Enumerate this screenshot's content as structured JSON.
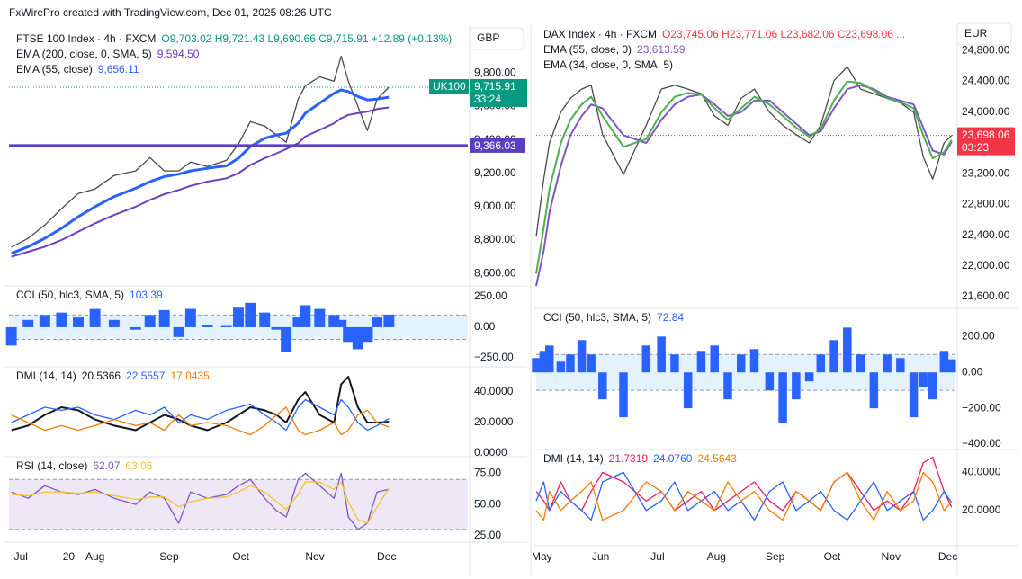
{
  "header": "FxWirePro created with TradingView.com, Dec 01, 2025 08:26 UTC",
  "chart_data": [
    {
      "type": "line",
      "title": "FTSE 100 Index · 4h · FXCM",
      "ohlc": "O9,703.02 H9,721.43 L9,690.66 C9,715.91 +12.89 (+0.13%)",
      "ohlc_color": "#089981",
      "currency": "GBP",
      "x": [
        -4,
        3,
        10,
        17,
        24,
        31,
        39,
        48,
        54,
        60,
        66,
        71,
        78,
        86,
        91,
        96,
        102,
        107,
        111,
        116,
        119,
        125,
        131,
        134,
        137,
        141,
        145,
        149,
        154
      ],
      "xlim": [
        -5,
        187
      ],
      "ylim": [
        8525,
        10050
      ],
      "yticks": [
        {
          "value": 8600,
          "label": "8,600.00"
        },
        {
          "value": 8800,
          "label": "8,800.00"
        },
        {
          "value": 9000,
          "label": "9,000.00"
        },
        {
          "value": 9200,
          "label": "9,200.00"
        },
        {
          "value": 9400,
          "label": "9,400.00"
        },
        {
          "value": 9600,
          "label": "9,600.00"
        },
        {
          "value": 9800,
          "label": "9,800.00"
        }
      ],
      "series": [
        {
          "color": "#4a4a4a",
          "values": [
            8757,
            8810,
            8890,
            8988,
            9079,
            9106,
            9187,
            9214,
            9294,
            9214,
            9214,
            9267,
            9240,
            9278,
            9375,
            9510,
            9483,
            9429,
            9386,
            9644,
            9725,
            9778,
            9752,
            9902,
            9752,
            9601,
            9456,
            9644,
            9715.91
          ]
        },
        {
          "name": "EMA (200, close, 0, SMA, 5)",
          "last_label": "9,594.50",
          "color": "#6a3fc0",
          "line_width": 2,
          "values": [
            8700,
            8730,
            8760,
            8800,
            8850,
            8900,
            8950,
            9000,
            9040,
            9075,
            9100,
            9125,
            9150,
            9170,
            9200,
            9250,
            9290,
            9320,
            9345,
            9380,
            9420,
            9460,
            9500,
            9530,
            9550,
            9560,
            9570,
            9585,
            9594.5
          ]
        },
        {
          "name": "EMA (55, close)",
          "last_label": "9,656.11",
          "color": "#2962ff",
          "line_width": 3,
          "values": [
            8720,
            8760,
            8810,
            8870,
            8940,
            9000,
            9060,
            9110,
            9150,
            9180,
            9195,
            9215,
            9230,
            9245,
            9290,
            9360,
            9410,
            9430,
            9440,
            9500,
            9560,
            9620,
            9680,
            9700,
            9690,
            9660,
            9640,
            9645,
            9656.11
          ]
        }
      ],
      "hline": {
        "value": 9366.03,
        "label": "9,366.03",
        "color": "#5b3fbf"
      },
      "price_label": {
        "name": "UK100",
        "value": 9715.91,
        "label": "9,715.91",
        "timer": "33:24",
        "color": "#089981"
      }
    },
    {
      "type": "bar",
      "title": "CCI (50, hlc3, SMA, 5)",
      "x": [
        -4,
        3,
        10,
        17,
        24,
        31,
        39,
        48,
        54,
        60,
        66,
        71,
        78,
        86,
        91,
        96,
        102,
        107,
        111,
        116,
        119,
        125,
        131,
        134,
        137,
        141,
        145,
        149,
        154
      ],
      "xlim": [
        -5,
        187
      ],
      "ylim": [
        -324,
        338
      ],
      "yticks": [
        {
          "value": 250,
          "label": "250.00"
        },
        {
          "value": 0,
          "label": "0.00"
        },
        {
          "value": -250,
          "label": "−250.00"
        }
      ],
      "bands": [
        100,
        -100
      ],
      "band_color": "#e3f2fd",
      "series": [
        {
          "last_label": "103.39",
          "color": "#2962ff",
          "values": [
            -150,
            60,
            100,
            120,
            80,
            150,
            60,
            -20,
            100,
            140,
            -80,
            150,
            20,
            10,
            160,
            200,
            120,
            -20,
            -200,
            80,
            180,
            150,
            100,
            60,
            -120,
            -180,
            -120,
            80,
            103.39
          ]
        }
      ]
    },
    {
      "type": "line",
      "title": "DMI (14, 14)",
      "x": [
        -4,
        3,
        10,
        17,
        24,
        31,
        39,
        48,
        54,
        60,
        66,
        71,
        78,
        86,
        91,
        96,
        102,
        107,
        111,
        116,
        119,
        125,
        131,
        134,
        137,
        141,
        145,
        149,
        154
      ],
      "xlim": [
        -5,
        187
      ],
      "ylim": [
        -2.4,
        56.5
      ],
      "yticks": [
        {
          "value": 40,
          "label": "40.0000"
        },
        {
          "value": 20,
          "label": "20.0000"
        },
        {
          "value": 0,
          "label": "0.0000"
        }
      ],
      "series": [
        {
          "last_label": "20.5366",
          "color": "#131722",
          "line_width": 2,
          "values": [
            15,
            18,
            25,
            30,
            28,
            22,
            18,
            15,
            20,
            25,
            22,
            18,
            15,
            20,
            25,
            30,
            28,
            25,
            20,
            35,
            40,
            25,
            20,
            45,
            50,
            30,
            20,
            20,
            20.5366
          ]
        },
        {
          "last_label": "22.5557",
          "color": "#2962ff",
          "values": [
            20,
            25,
            30,
            28,
            30,
            25,
            22,
            28,
            25,
            30,
            20,
            25,
            22,
            28,
            30,
            32,
            25,
            20,
            15,
            30,
            35,
            30,
            25,
            35,
            30,
            20,
            15,
            18,
            22.5557
          ]
        },
        {
          "last_label": "17.0435",
          "color": "#f57c00",
          "values": [
            25,
            20,
            15,
            18,
            15,
            18,
            22,
            18,
            20,
            15,
            25,
            18,
            20,
            18,
            15,
            12,
            18,
            25,
            30,
            15,
            12,
            15,
            20,
            12,
            15,
            25,
            28,
            20,
            17.0435
          ]
        }
      ]
    },
    {
      "type": "line",
      "title": "RSI (14, close)",
      "x": [
        -4,
        3,
        10,
        17,
        24,
        31,
        39,
        48,
        54,
        60,
        66,
        71,
        78,
        86,
        91,
        96,
        102,
        107,
        111,
        116,
        119,
        125,
        131,
        134,
        137,
        141,
        145,
        149,
        154
      ],
      "xlim": [
        -5,
        187
      ],
      "ylim": [
        20.6,
        88.2
      ],
      "yticks": [
        {
          "value": 75,
          "label": "75.00"
        },
        {
          "value": 50,
          "label": "50.00"
        },
        {
          "value": 25,
          "label": "25.00"
        }
      ],
      "bands": [
        70,
        30
      ],
      "band_color": "#ede7f6",
      "xticks": [
        {
          "value": 0,
          "label": "Jul"
        },
        {
          "value": 31,
          "label": "Aug"
        },
        {
          "value": 62,
          "label": "Sep"
        },
        {
          "value": 92,
          "label": "Oct"
        },
        {
          "value": 123,
          "label": "Nov"
        },
        {
          "value": 153,
          "label": "Dec"
        },
        20
      ],
      "series": [
        {
          "last_label": "62.07",
          "color": "#7e57c2",
          "values": [
            60,
            55,
            65,
            60,
            58,
            62,
            55,
            50,
            60,
            55,
            35,
            60,
            55,
            58,
            65,
            70,
            55,
            45,
            40,
            70,
            75,
            65,
            55,
            75,
            40,
            30,
            35,
            60,
            62.07
          ]
        },
        {
          "last_label": "63.06",
          "color": "#f9c22e",
          "values": [
            58,
            57,
            60,
            60,
            59,
            60,
            57,
            54,
            56,
            56,
            48,
            52,
            55,
            56,
            60,
            65,
            60,
            52,
            46,
            58,
            68,
            68,
            62,
            68,
            52,
            38,
            35,
            48,
            63.06
          ]
        }
      ]
    },
    {
      "type": "line",
      "title": "DAX Index · 4h · FXCM",
      "ohlc": "O23,745.06 H23,771.06 L23,682.06 C23,698.06 ...",
      "ohlc_color": "#f23645",
      "currency": "EUR",
      "x": [
        -3,
        1,
        4,
        10,
        15,
        21,
        26,
        32,
        43,
        55,
        63,
        70,
        77,
        84,
        91,
        98,
        105,
        112,
        120,
        127,
        134,
        141,
        147,
        154,
        161,
        168,
        175,
        182,
        189,
        196,
        201,
        206,
        212,
        216
      ],
      "xlim": [
        -3,
        218
      ],
      "ylim": [
        21460,
        25108
      ],
      "yticks": [
        {
          "value": 21600,
          "label": "21,600.00"
        },
        {
          "value": 22000,
          "label": "22,000.00"
        },
        {
          "value": 22400,
          "label": "22,400.00"
        },
        {
          "value": 22800,
          "label": "22,800.00"
        },
        {
          "value": 23200,
          "label": "23,200.00"
        },
        {
          "value": 24000,
          "label": "24,000.00"
        },
        {
          "value": 24400,
          "label": "24,400.00"
        },
        {
          "value": 24800,
          "label": "24,800.00"
        }
      ],
      "series": [
        {
          "color": "#4a4a4a",
          "values": [
            22380,
            23130,
            23600,
            24000,
            24180,
            24300,
            24350,
            23710,
            23190,
            23830,
            24300,
            24350,
            24300,
            24240,
            23950,
            23830,
            24180,
            24300,
            24000,
            23830,
            23710,
            23600,
            23830,
            24410,
            24590,
            24300,
            24240,
            24180,
            24120,
            24000,
            23420,
            23130,
            23600,
            23698.06
          ]
        },
        {
          "name": "EMA (55, close, 0)",
          "last_label": "23,613.59",
          "color": "#7e57c2",
          "line_width": 2,
          "values": [
            21740,
            22200,
            22700,
            23300,
            23700,
            23950,
            24100,
            24050,
            23700,
            23600,
            23900,
            24100,
            24200,
            24230,
            24100,
            23950,
            24000,
            24150,
            24150,
            24000,
            23850,
            23700,
            23750,
            24050,
            24300,
            24350,
            24300,
            24200,
            24150,
            24100,
            23800,
            23500,
            23450,
            23613.59
          ]
        },
        {
          "name": "EMA (34, close, 0, SMA, 5)",
          "color": "#4caf50",
          "line_width": 2,
          "values": [
            21900,
            22500,
            23000,
            23600,
            23900,
            24100,
            24200,
            23950,
            23550,
            23650,
            24000,
            24200,
            24250,
            24230,
            24050,
            23900,
            24050,
            24200,
            24100,
            23950,
            23800,
            23680,
            23780,
            24150,
            24400,
            24380,
            24280,
            24180,
            24130,
            24050,
            23700,
            23400,
            23480,
            23640
          ]
        }
      ],
      "price_label": {
        "value": 23698.06,
        "label": "23,698.06",
        "timer": "03:23",
        "color": "#f23645"
      }
    },
    {
      "type": "bar",
      "title": "CCI (50, hlc3, SMA, 5)",
      "x": [
        -3,
        1,
        4,
        10,
        15,
        21,
        26,
        32,
        43,
        55,
        63,
        70,
        77,
        84,
        91,
        98,
        105,
        112,
        120,
        127,
        134,
        141,
        147,
        154,
        161,
        168,
        175,
        182,
        189,
        196,
        201,
        206,
        212,
        216
      ],
      "xlim": [
        -3,
        218
      ],
      "ylim": [
        -430,
        357
      ],
      "yticks": [
        {
          "value": 200,
          "label": "200.00"
        },
        {
          "value": 0,
          "label": "0.00"
        },
        {
          "value": -200,
          "label": "−200.00"
        },
        {
          "value": -400,
          "label": "−400.00"
        }
      ],
      "bands": [
        100,
        -100
      ],
      "band_color": "#e3f2fd",
      "series": [
        {
          "last_label": "72.84",
          "color": "#2962ff",
          "values": [
            80,
            120,
            150,
            60,
            100,
            180,
            100,
            -150,
            -250,
            150,
            200,
            100,
            -200,
            120,
            150,
            -150,
            100,
            130,
            -100,
            -280,
            -150,
            -50,
            100,
            180,
            250,
            100,
            -200,
            100,
            80,
            -250,
            -80,
            -150,
            120,
            72.84
          ]
        }
      ]
    },
    {
      "type": "line",
      "title": "DMI (14, 14)",
      "x": [
        -3,
        1,
        4,
        10,
        15,
        21,
        26,
        32,
        43,
        55,
        63,
        70,
        77,
        84,
        91,
        98,
        105,
        112,
        120,
        127,
        134,
        141,
        147,
        154,
        161,
        168,
        175,
        182,
        189,
        196,
        201,
        206,
        212,
        216
      ],
      "xlim": [
        -3,
        218
      ],
      "ylim": [
        2,
        52
      ],
      "yticks": [
        {
          "value": 40,
          "label": "40.0000"
        },
        {
          "value": 20,
          "label": "20.0000"
        }
      ],
      "xticks": [
        {
          "value": 0,
          "label": "May"
        },
        {
          "value": 31,
          "label": "Jun"
        },
        {
          "value": 61,
          "label": "Jul"
        },
        {
          "value": 92,
          "label": "Aug"
        },
        {
          "value": 123,
          "label": "Sep"
        },
        {
          "value": 153,
          "label": "Oct"
        },
        {
          "value": 184,
          "label": "Nov"
        },
        {
          "value": 214,
          "label": "Dec"
        }
      ],
      "series": [
        {
          "last_label": "21.7319",
          "color": "#e91e63",
          "values": [
            30,
            25,
            20,
            35,
            25,
            20,
            30,
            40,
            35,
            25,
            30,
            20,
            25,
            30,
            20,
            25,
            30,
            35,
            25,
            20,
            30,
            25,
            20,
            35,
            40,
            30,
            20,
            25,
            20,
            30,
            45,
            48,
            30,
            21.7319
          ]
        },
        {
          "last_label": "24.0760",
          "color": "#2962ff",
          "values": [
            25,
            35,
            20,
            30,
            25,
            20,
            15,
            35,
            40,
            20,
            25,
            35,
            20,
            25,
            30,
            20,
            25,
            15,
            30,
            35,
            20,
            25,
            30,
            20,
            15,
            25,
            35,
            20,
            25,
            30,
            15,
            20,
            30,
            24.076
          ]
        },
        {
          "last_label": "24.5643",
          "color": "#f57c00",
          "values": [
            20,
            15,
            30,
            20,
            25,
            30,
            35,
            15,
            20,
            35,
            30,
            20,
            30,
            25,
            20,
            35,
            25,
            30,
            20,
            15,
            30,
            25,
            20,
            35,
            40,
            25,
            15,
            30,
            20,
            25,
            40,
            35,
            20,
            24.5643
          ]
        }
      ]
    }
  ]
}
